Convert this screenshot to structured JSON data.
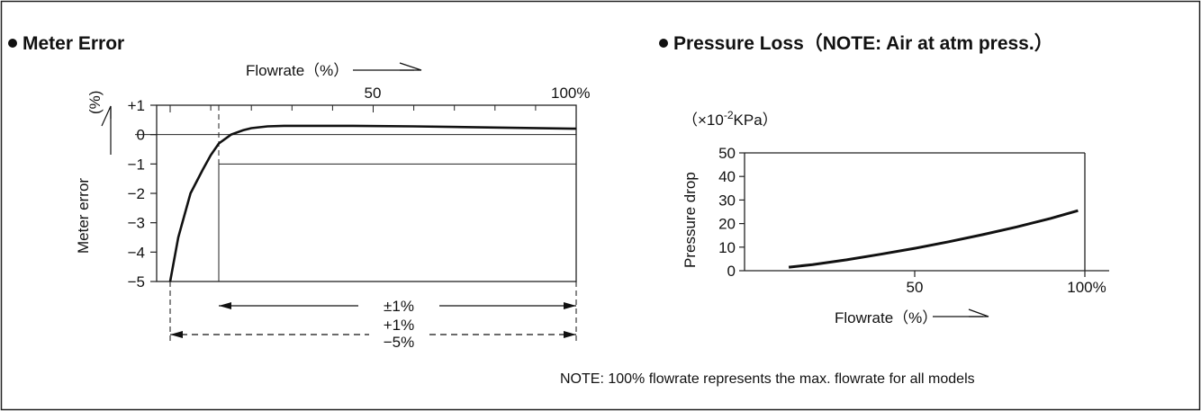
{
  "chart_data": [
    {
      "type": "line",
      "title": "Meter Error",
      "xlabel": "Flowrate（%）",
      "ylabel": "Meter error",
      "yunit": "(%)",
      "xlim": [
        0,
        100
      ],
      "ylim": [
        -5,
        1
      ],
      "x_tick_labels": [
        "50",
        "100%"
      ],
      "y_tick_labels": [
        "+1",
        "0",
        "−1",
        "−2",
        "−3",
        "−4",
        "−5"
      ],
      "grid": false,
      "series": [
        {
          "x": [
            0,
            2,
            5,
            8,
            10,
            12,
            15,
            18,
            20,
            24,
            28,
            35,
            45,
            60,
            80,
            100
          ],
          "y": [
            -5,
            -3.5,
            -2.0,
            -1.2,
            -0.7,
            -0.3,
            0.0,
            0.15,
            0.22,
            0.28,
            0.3,
            0.3,
            0.3,
            0.28,
            0.24,
            0.2
          ]
        }
      ],
      "annotations": {
        "band_1": {
          "label": "±1%",
          "x_from": 12,
          "x_to": 100
        },
        "band_2": {
          "label_top": "+1%",
          "label_bottom": "−5%",
          "x_from": 0,
          "x_to": 100
        }
      }
    },
    {
      "type": "line",
      "title": "Pressure Loss（NOTE: Air at atm press.）",
      "unit_label": "（×10",
      "unit_sup": "-2",
      "unit_tail": "KPa）",
      "xlabel": "Flowrate（%）",
      "ylabel": "Pressure drop",
      "xlim": [
        0,
        100
      ],
      "ylim": [
        0,
        50
      ],
      "x_tick_labels": [
        "50",
        "100%"
      ],
      "y_tick_labels": [
        "0",
        "10",
        "20",
        "30",
        "40",
        "50"
      ],
      "grid": false,
      "series": [
        {
          "x": [
            13,
            20,
            30,
            40,
            50,
            60,
            70,
            80,
            90,
            98
          ],
          "y": [
            1.5,
            2.6,
            4.6,
            7.0,
            9.5,
            12.3,
            15.3,
            18.6,
            22.2,
            25.5
          ]
        }
      ]
    }
  ],
  "note": "NOTE: 100% flowrate represents the max. flowrate for all models"
}
